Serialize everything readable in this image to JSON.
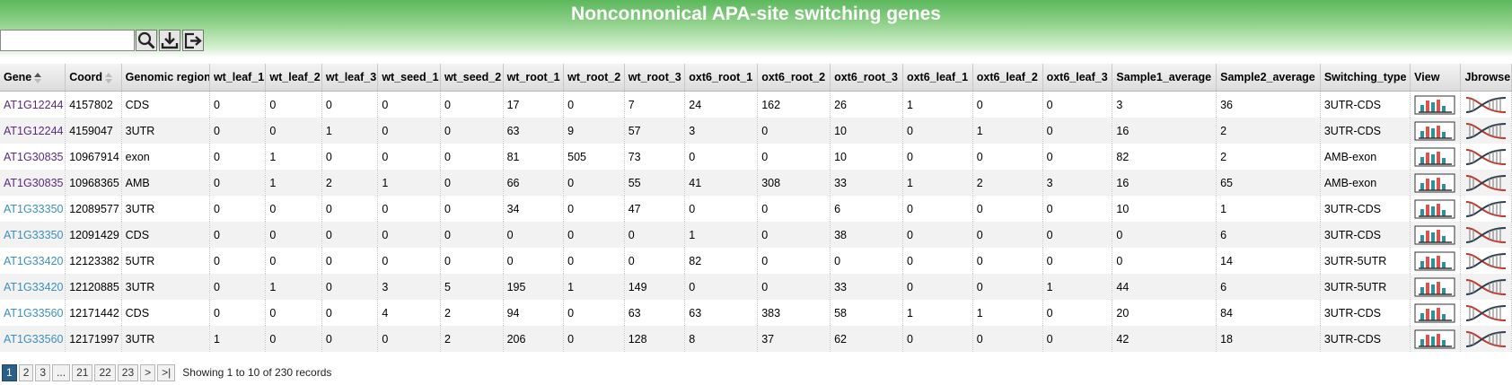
{
  "header": {
    "title": "Nonconnonical APA-site switching genes",
    "search_placeholder": ""
  },
  "toolbar": {
    "search_icon": "search-icon",
    "download_icon": "download-icon",
    "export_icon": "export-icon"
  },
  "table": {
    "columns": [
      "Gene",
      "Coord",
      "Genomic region",
      "wt_leaf_1",
      "wt_leaf_2",
      "wt_leaf_3",
      "wt_seed_1",
      "wt_seed_2",
      "wt_root_1",
      "wt_root_2",
      "wt_root_3",
      "oxt6_root_1",
      "oxt6_root_2",
      "oxt6_root_3",
      "oxt6_leaf_1",
      "oxt6_leaf_2",
      "oxt6_leaf_3",
      "Sample1_average",
      "Sample2_average",
      "Switching_type",
      "View",
      "Jbrowse"
    ],
    "rows": [
      [
        "AT1G12244",
        "4157802",
        "CDS",
        "0",
        "0",
        "0",
        "0",
        "0",
        "17",
        "0",
        "7",
        "24",
        "162",
        "26",
        "1",
        "0",
        "0",
        "3",
        "36",
        "3UTR-CDS"
      ],
      [
        "AT1G12244",
        "4159047",
        "3UTR",
        "0",
        "0",
        "1",
        "0",
        "0",
        "63",
        "9",
        "57",
        "3",
        "0",
        "10",
        "0",
        "1",
        "0",
        "16",
        "2",
        "3UTR-CDS"
      ],
      [
        "AT1G30835",
        "10967914",
        "exon",
        "0",
        "1",
        "0",
        "0",
        "0",
        "81",
        "505",
        "73",
        "0",
        "0",
        "10",
        "0",
        "0",
        "0",
        "82",
        "2",
        "AMB-exon"
      ],
      [
        "AT1G30835",
        "10968365",
        "AMB",
        "0",
        "1",
        "2",
        "1",
        "0",
        "66",
        "0",
        "55",
        "41",
        "308",
        "33",
        "1",
        "2",
        "3",
        "16",
        "65",
        "AMB-exon"
      ],
      [
        "AT1G33350",
        "12089577",
        "3UTR",
        "0",
        "0",
        "0",
        "0",
        "0",
        "34",
        "0",
        "47",
        "0",
        "0",
        "6",
        "0",
        "0",
        "0",
        "10",
        "1",
        "3UTR-CDS"
      ],
      [
        "AT1G33350",
        "12091429",
        "CDS",
        "0",
        "0",
        "0",
        "0",
        "0",
        "0",
        "0",
        "0",
        "1",
        "0",
        "38",
        "0",
        "0",
        "0",
        "0",
        "6",
        "3UTR-CDS"
      ],
      [
        "AT1G33420",
        "12123382",
        "5UTR",
        "0",
        "0",
        "0",
        "0",
        "0",
        "0",
        "0",
        "0",
        "82",
        "0",
        "0",
        "0",
        "0",
        "0",
        "0",
        "14",
        "3UTR-5UTR"
      ],
      [
        "AT1G33420",
        "12120885",
        "3UTR",
        "0",
        "1",
        "0",
        "3",
        "5",
        "195",
        "1",
        "149",
        "0",
        "0",
        "33",
        "0",
        "0",
        "1",
        "44",
        "6",
        "3UTR-5UTR"
      ],
      [
        "AT1G33560",
        "12171442",
        "CDS",
        "0",
        "0",
        "0",
        "4",
        "2",
        "94",
        "0",
        "63",
        "63",
        "383",
        "58",
        "1",
        "1",
        "0",
        "20",
        "84",
        "3UTR-CDS"
      ],
      [
        "AT1G33560",
        "12171997",
        "3UTR",
        "1",
        "0",
        "0",
        "0",
        "2",
        "206",
        "0",
        "128",
        "8",
        "37",
        "62",
        "0",
        "0",
        "0",
        "42",
        "18",
        "3UTR-CDS"
      ]
    ],
    "visited_rows": [
      0,
      1,
      2,
      3
    ],
    "view_icon": "bar-chart-icon",
    "jbrowse_icon": "genome-browser-icon",
    "link_colors": {
      "visited": "#5a2a82",
      "unvisited": "#3a8fc0"
    }
  },
  "pager": {
    "pages": [
      "1",
      "2",
      "3",
      "...",
      "21",
      "22",
      "23",
      ">",
      ">|"
    ],
    "active": "1",
    "info": "Showing 1 to 10 of 230 records"
  },
  "colors": {
    "header_green": "#5cb85c",
    "pager_active": "#2b5f8a",
    "bar_red": "#d9534f",
    "bar_teal": "#2f8f9a"
  }
}
